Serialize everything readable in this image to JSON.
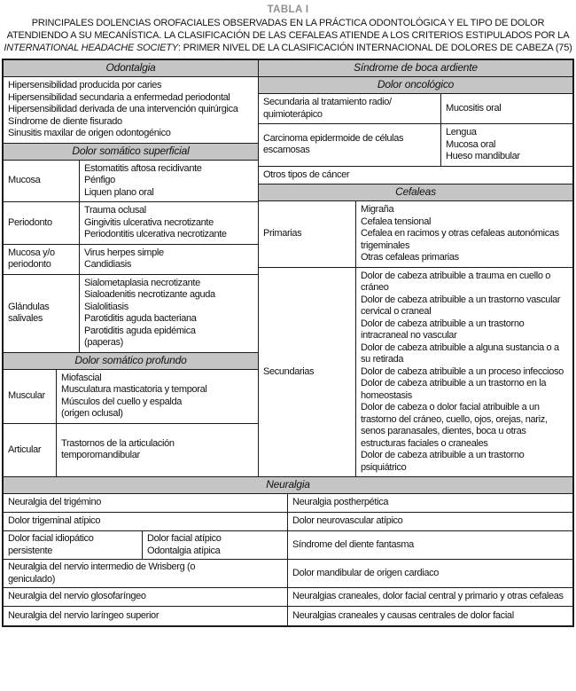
{
  "colors": {
    "header_bg": "#c5c5c5",
    "border": "#1a1a1a",
    "table_label_gray": "#8f8f8f"
  },
  "title": {
    "label": "TABLA I",
    "caption_part1": "PRINCIPALES DOLENCIAS OROFACIALES OBSERVADAS EN LA PRÁCTICA ODONTOLÓGICA Y EL TIPO DE DOLOR ATENDIENDO A SU MECANÍSTICA. LA CLASIFICACIÓN DE LAS CEFALEAS ATIENDE A LOS CRITERIOS ESTIPULADOS POR LA ",
    "caption_italic": "INTERNATIONAL HEADACHE SOCIETY",
    "caption_part2": ": PRIMER NIVEL DE LA CLASIFICACIÓN INTERNACIONAL DE DOLORES DE CABEZA (75)"
  },
  "left": {
    "odontalgia": {
      "header": "Odontalgia",
      "items": "Hipersensibilidad producida por caries\nHipersensibilidad secundaria a enfermedad periodontal\nHipersensibilidad derivada de una intervención quirúrgica\nSíndrome de diente fisurado\nSinusitis maxilar de origen odontogénico"
    },
    "superficial": {
      "header": "Dolor somático superficial",
      "rows": [
        {
          "label": "Mucosa",
          "items": "Estomatitis aftosa recidivante\nPénfigo\nLiquen plano oral"
        },
        {
          "label": "Periodonto",
          "items": "Trauma oclusal\nGingivitis ulcerativa necrotizante\nPeriodontitis ulcerativa necrotizante"
        },
        {
          "label": "Mucosa y/o periodonto",
          "items": "Virus herpes simple\nCandidiasis"
        },
        {
          "label": "Glándulas salivales",
          "items": "Sialometaplasia necrotizante\nSialoadenitis necrotizante aguda\nSialolitiasis\nParotiditis aguda bacteriana\nParotiditis aguda epidémica\n(paperas)"
        }
      ]
    },
    "profundo": {
      "header": "Dolor somático profundo",
      "rows": [
        {
          "label": "Muscular",
          "items": "Miofascial\nMusculatura masticatoria y temporal\nMúsculos del cuello y espalda\n(origen oclusal)"
        },
        {
          "label": "Articular",
          "items": "Trastornos de la articulación temporomandibular"
        }
      ]
    }
  },
  "right": {
    "boca_ardiente_header": "Síndrome de boca ardiente",
    "oncologico": {
      "header": "Dolor oncológico",
      "rows": [
        {
          "cause": "Secundaria al tratamiento radio/\nquimioterápico",
          "sites": "Mucositis oral"
        },
        {
          "cause": "Carcinoma epidermoide de células escamosas",
          "sites": "Lengua\nMucosa oral\nHueso mandibular"
        }
      ],
      "other": "Otros tipos de cáncer"
    },
    "cefaleas": {
      "header": "Cefaleas",
      "rows": [
        {
          "label": "Primarias",
          "items": "Migraña\nCefalea tensional\nCefalea en racimos y otras cefaleas autonómicas trigeminales\nOtras cefaleas primarias"
        },
        {
          "label": "Secundarias",
          "items": "Dolor de cabeza atribuible a trauma en cuello o cráneo\nDolor de cabeza atribuible a un trastorno vascular cervical o craneal\nDolor de cabeza atribuible a un trastorno intracraneal no vascular\nDolor de cabeza atribuible a alguna sustancia o a su retirada\nDolor de cabeza atribuible a un proceso infeccioso\nDolor de cabeza atribuible a un trastorno en la homeostasis\nDolor de cabeza o dolor facial atribuible a un trastorno del cráneo, cuello, ojos, orejas, nariz, senos paranasales, dientes, boca u otras estructuras faciales o craneales\nDolor de cabeza atribuible a un trastorno psiquiátrico"
        }
      ]
    }
  },
  "neuralgia": {
    "header": "Neuralgia",
    "rows": [
      {
        "left": "Neuralgia del trigémino",
        "right": "Neuralgia postherpética"
      },
      {
        "left": "Dolor trigeminal atípico",
        "right": "Dolor neurovascular atípico"
      },
      {
        "left_a": "Dolor facial idiopático persistente",
        "left_b": "Dolor facial atípico\nOdontalgia atípica",
        "right": "Síndrome del diente fantasma"
      },
      {
        "left": "Neuralgia del nervio intermedio de Wrisberg (o\ngeniculado)",
        "right": "Dolor mandibular de origen cardiaco"
      },
      {
        "left": "Neuralgia del nervio glosofaríngeo",
        "right": "Neuralgias craneales, dolor facial central y primario y otras cefaleas"
      },
      {
        "left": "Neuralgia del nervio laríngeo superior",
        "right": "Neuralgias craneales y causas centrales de dolor facial"
      }
    ]
  }
}
